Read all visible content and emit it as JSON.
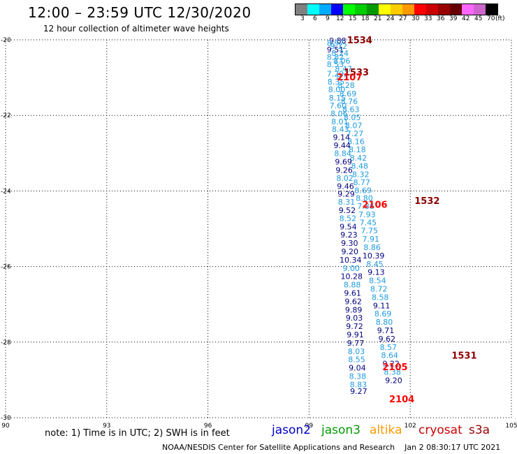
{
  "header": {
    "title": "12:00 – 23:59 UTC 12/30/2020",
    "subtitle": "12 hour collection of altimeter wave heights"
  },
  "colorbar": {
    "colors": [
      "#808080",
      "#00ffff",
      "#00aaff",
      "#0000ff",
      "#00ff00",
      "#00cc00",
      "#009900",
      "#ffff00",
      "#ffcc00",
      "#ff9900",
      "#ff0000",
      "#cc0000",
      "#990000",
      "#660000",
      "#ff66ff",
      "#cc66cc",
      "#000000"
    ],
    "labels": [
      "3",
      "6",
      "9",
      "12",
      "15",
      "18",
      "21",
      "24",
      "27",
      "30",
      "33",
      "36",
      "39",
      "42",
      "45",
      "70",
      "(ft)"
    ]
  },
  "chart_data": {
    "type": "scatter",
    "x_ticks": [
      "90",
      "93",
      "96",
      "99",
      "102",
      "105"
    ],
    "y_ticks": [
      "-20",
      "-22",
      "-24",
      "-26",
      "-28",
      "-30"
    ],
    "xlim": [
      90,
      105
    ],
    "ylim": [
      -30,
      -20
    ],
    "grid": true,
    "series": [
      {
        "name": "jason2",
        "points": [
          {
            "lon": 99.85,
            "lat": -20.02,
            "label": "9.88",
            "color": "#000080"
          },
          {
            "lon": 99.78,
            "lat": -20.08,
            "label": "8.97",
            "color": "#1e9be0"
          },
          {
            "lon": 99.88,
            "lat": -20.17,
            "label": "9.12",
            "color": "#1e9be0"
          },
          {
            "lon": 99.78,
            "lat": -20.26,
            "label": "9.51",
            "color": "#000080"
          },
          {
            "lon": 99.92,
            "lat": -20.35,
            "label": "8.24",
            "color": "#1e9be0"
          },
          {
            "lon": 99.78,
            "lat": -20.45,
            "label": "8.82",
            "color": "#1e9be0"
          },
          {
            "lon": 99.97,
            "lat": -20.55,
            "label": "8.06",
            "color": "#1e9be0"
          },
          {
            "lon": 99.78,
            "lat": -20.65,
            "label": "8.53",
            "color": "#1e9be0"
          },
          {
            "lon": 100.02,
            "lat": -20.77,
            "label": "8.47",
            "color": "#1e9be0"
          },
          {
            "lon": 99.78,
            "lat": -20.9,
            "label": "7.29",
            "color": "#1e9be0"
          },
          {
            "lon": 100.06,
            "lat": -20.98,
            "label": "8.57",
            "color": "#1e9be0"
          },
          {
            "lon": 99.8,
            "lat": -21.11,
            "label": "8.35",
            "color": "#1e9be0"
          },
          {
            "lon": 100.1,
            "lat": -21.2,
            "label": "8.28",
            "color": "#1e9be0"
          },
          {
            "lon": 99.82,
            "lat": -21.31,
            "label": "8.00",
            "color": "#1e9be0"
          },
          {
            "lon": 100.15,
            "lat": -21.42,
            "label": "8.69",
            "color": "#1e9be0"
          },
          {
            "lon": 99.84,
            "lat": -21.53,
            "label": "8.15",
            "color": "#1e9be0"
          },
          {
            "lon": 100.19,
            "lat": -21.63,
            "label": "8.76",
            "color": "#1e9be0"
          },
          {
            "lon": 99.86,
            "lat": -21.74,
            "label": "7.60",
            "color": "#1e9be0"
          },
          {
            "lon": 100.24,
            "lat": -21.84,
            "label": "8.63",
            "color": "#1e9be0"
          },
          {
            "lon": 99.89,
            "lat": -21.95,
            "label": "8.06",
            "color": "#1e9be0"
          },
          {
            "lon": 100.28,
            "lat": -22.05,
            "label": "8.05",
            "color": "#1e9be0"
          },
          {
            "lon": 99.91,
            "lat": -22.16,
            "label": "8.01",
            "color": "#1e9be0"
          },
          {
            "lon": 100.32,
            "lat": -22.26,
            "label": "8.07",
            "color": "#1e9be0"
          },
          {
            "lon": 99.93,
            "lat": -22.37,
            "label": "8.43",
            "color": "#1e9be0"
          },
          {
            "lon": 100.36,
            "lat": -22.48,
            "label": "7.27",
            "color": "#1e9be0"
          },
          {
            "lon": 99.96,
            "lat": -22.58,
            "label": "9.14",
            "color": "#000080"
          },
          {
            "lon": 100.39,
            "lat": -22.69,
            "label": "8.16",
            "color": "#1e9be0"
          },
          {
            "lon": 99.98,
            "lat": -22.79,
            "label": "9.44",
            "color": "#000080"
          },
          {
            "lon": 100.43,
            "lat": -22.9,
            "label": "8.18",
            "color": "#1e9be0"
          },
          {
            "lon": 100.0,
            "lat": -23.0,
            "label": "8.84",
            "color": "#1e9be0"
          },
          {
            "lon": 100.46,
            "lat": -23.12,
            "label": "8.42",
            "color": "#1e9be0"
          },
          {
            "lon": 100.02,
            "lat": -23.23,
            "label": "9.69",
            "color": "#000080"
          },
          {
            "lon": 100.5,
            "lat": -23.34,
            "label": "8.48",
            "color": "#1e9be0"
          },
          {
            "lon": 100.04,
            "lat": -23.45,
            "label": "9.26",
            "color": "#000080"
          },
          {
            "lon": 100.53,
            "lat": -23.56,
            "label": "8.32",
            "color": "#1e9be0"
          },
          {
            "lon": 100.06,
            "lat": -23.66,
            "label": "8.02",
            "color": "#1e9be0"
          },
          {
            "lon": 100.56,
            "lat": -23.77,
            "label": "8.77",
            "color": "#1e9be0"
          },
          {
            "lon": 100.08,
            "lat": -23.87,
            "label": "9.46",
            "color": "#000080"
          },
          {
            "lon": 100.6,
            "lat": -23.98,
            "label": "8.69",
            "color": "#1e9be0"
          },
          {
            "lon": 100.1,
            "lat": -24.08,
            "label": "9.29",
            "color": "#000080"
          },
          {
            "lon": 100.64,
            "lat": -24.19,
            "label": "8.80",
            "color": "#1e9be0"
          },
          {
            "lon": 100.11,
            "lat": -24.29,
            "label": "8.31",
            "color": "#1e9be0"
          },
          {
            "lon": 100.68,
            "lat": -24.4,
            "label": "7.86",
            "color": "#1e9be0"
          },
          {
            "lon": 100.13,
            "lat": -24.51,
            "label": "9.52",
            "color": "#000080"
          },
          {
            "lon": 100.72,
            "lat": -24.62,
            "label": "7.93",
            "color": "#1e9be0"
          },
          {
            "lon": 100.15,
            "lat": -24.72,
            "label": "8.52",
            "color": "#1e9be0"
          },
          {
            "lon": 100.75,
            "lat": -24.83,
            "label": "7.45",
            "color": "#1e9be0"
          },
          {
            "lon": 100.16,
            "lat": -24.94,
            "label": "9.54",
            "color": "#000080"
          },
          {
            "lon": 100.79,
            "lat": -25.05,
            "label": "7.75",
            "color": "#1e9be0"
          },
          {
            "lon": 100.18,
            "lat": -25.16,
            "label": "9.23",
            "color": "#000080"
          },
          {
            "lon": 100.83,
            "lat": -25.27,
            "label": "7.91",
            "color": "#1e9be0"
          },
          {
            "lon": 100.2,
            "lat": -25.38,
            "label": "9.30",
            "color": "#000080"
          },
          {
            "lon": 100.87,
            "lat": -25.49,
            "label": "8.86",
            "color": "#1e9be0"
          },
          {
            "lon": 100.21,
            "lat": -25.6,
            "label": "9.20",
            "color": "#000080"
          },
          {
            "lon": 100.91,
            "lat": -25.71,
            "label": "10.39",
            "color": "#000080"
          },
          {
            "lon": 100.23,
            "lat": -25.82,
            "label": "10.34",
            "color": "#000080"
          },
          {
            "lon": 100.95,
            "lat": -25.93,
            "label": "8.45",
            "color": "#1e9be0"
          },
          {
            "lon": 100.25,
            "lat": -26.04,
            "label": "9.00",
            "color": "#1e9be0"
          },
          {
            "lon": 100.99,
            "lat": -26.15,
            "label": "9.13",
            "color": "#000080"
          },
          {
            "lon": 100.26,
            "lat": -26.26,
            "label": "10.28",
            "color": "#000080"
          },
          {
            "lon": 101.03,
            "lat": -26.37,
            "label": "8.54",
            "color": "#1e9be0"
          },
          {
            "lon": 100.28,
            "lat": -26.48,
            "label": "8.88",
            "color": "#1e9be0"
          },
          {
            "lon": 101.07,
            "lat": -26.59,
            "label": "8.72",
            "color": "#1e9be0"
          },
          {
            "lon": 100.29,
            "lat": -26.7,
            "label": "9.61",
            "color": "#000080"
          },
          {
            "lon": 101.11,
            "lat": -26.81,
            "label": "8.58",
            "color": "#1e9be0"
          },
          {
            "lon": 100.31,
            "lat": -26.92,
            "label": "9.62",
            "color": "#000080"
          },
          {
            "lon": 101.15,
            "lat": -27.03,
            "label": "9.11",
            "color": "#000080"
          },
          {
            "lon": 100.32,
            "lat": -27.14,
            "label": "9.89",
            "color": "#000080"
          },
          {
            "lon": 101.19,
            "lat": -27.25,
            "label": "8.69",
            "color": "#1e9be0"
          },
          {
            "lon": 100.34,
            "lat": -27.36,
            "label": "9.03",
            "color": "#000080"
          },
          {
            "lon": 101.23,
            "lat": -27.47,
            "label": "8.80",
            "color": "#1e9be0"
          },
          {
            "lon": 100.35,
            "lat": -27.58,
            "label": "9.72",
            "color": "#000080"
          },
          {
            "lon": 101.27,
            "lat": -27.69,
            "label": "9.71",
            "color": "#000080"
          },
          {
            "lon": 100.37,
            "lat": -27.8,
            "label": "9.91",
            "color": "#000080"
          },
          {
            "lon": 101.31,
            "lat": -27.91,
            "label": "9.62",
            "color": "#000080"
          },
          {
            "lon": 100.38,
            "lat": -28.02,
            "label": "9.77",
            "color": "#000080"
          },
          {
            "lon": 101.35,
            "lat": -28.13,
            "label": "8.57",
            "color": "#1e9be0"
          },
          {
            "lon": 100.4,
            "lat": -28.24,
            "label": "8.03",
            "color": "#1e9be0"
          },
          {
            "lon": 101.39,
            "lat": -28.35,
            "label": "8.64",
            "color": "#1e9be0"
          },
          {
            "lon": 100.41,
            "lat": -28.46,
            "label": "8.55",
            "color": "#1e9be0"
          },
          {
            "lon": 101.43,
            "lat": -28.57,
            "label": "9.22",
            "color": "#000080"
          },
          {
            "lon": 100.43,
            "lat": -28.68,
            "label": "9.04",
            "color": "#000080"
          },
          {
            "lon": 101.47,
            "lat": -28.79,
            "label": "8.38",
            "color": "#1e9be0"
          },
          {
            "lon": 100.44,
            "lat": -28.9,
            "label": "8.38",
            "color": "#1e9be0"
          },
          {
            "lon": 101.51,
            "lat": -29.01,
            "label": "9.20",
            "color": "#000080"
          },
          {
            "lon": 100.46,
            "lat": -29.12,
            "label": "8.83",
            "color": "#1e9be0"
          },
          {
            "lon": 100.47,
            "lat": -29.3,
            "label": "9.27",
            "color": "#000080"
          }
        ]
      }
    ],
    "annotations": [
      {
        "text": "1534",
        "lon": 100.5,
        "lat": -20.0,
        "color": "#8b0000"
      },
      {
        "text": "1533",
        "lon": 100.4,
        "lat": -20.85,
        "color": "#8b0000"
      },
      {
        "text": "2107",
        "lon": 100.2,
        "lat": -20.98,
        "color": "#ff0000"
      },
      {
        "text": "1532",
        "lon": 102.5,
        "lat": -24.25,
        "color": "#8b0000"
      },
      {
        "text": "2106",
        "lon": 100.95,
        "lat": -24.35,
        "color": "#ff0000"
      },
      {
        "text": "1531",
        "lon": 103.6,
        "lat": -28.35,
        "color": "#8b0000"
      },
      {
        "text": "2105",
        "lon": 101.55,
        "lat": -28.65,
        "color": "#ff0000"
      },
      {
        "text": "2104",
        "lon": 101.75,
        "lat": -29.5,
        "color": "#ff0000"
      }
    ]
  },
  "legend": {
    "note": "note: 1) Time is in UTC; 2) SWH is in feet",
    "items": [
      {
        "label": "jason2",
        "color": "#0000cc"
      },
      {
        "label": "jason3",
        "color": "#009900"
      },
      {
        "label": "altika",
        "color": "#ff9900"
      },
      {
        "label": "cryosat",
        "color": "#cc0000"
      },
      {
        "label": "s3a",
        "color": "#990000"
      }
    ]
  },
  "footer": {
    "credit": "NOAA/NESDIS Center for Satellite Applications and Research",
    "timestamp": "Jan  2 08:30:17 UTC 2021"
  }
}
